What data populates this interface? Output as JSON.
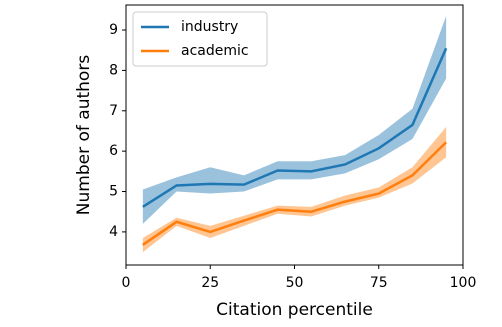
{
  "chart_data": {
    "type": "line",
    "xlabel": "Citation percentile",
    "ylabel": "Number of authors",
    "x": [
      5,
      15,
      25,
      35,
      45,
      55,
      65,
      75,
      85,
      95
    ],
    "series": [
      {
        "name": "industry",
        "color": "#1f77b4",
        "values": [
          4.62,
          5.15,
          5.19,
          5.17,
          5.52,
          5.5,
          5.67,
          6.07,
          6.65,
          8.55
        ],
        "lower": [
          4.2,
          5.0,
          4.95,
          5.0,
          5.3,
          5.3,
          5.45,
          5.8,
          6.3,
          7.8
        ],
        "upper": [
          5.05,
          5.35,
          5.6,
          5.4,
          5.75,
          5.75,
          5.9,
          6.4,
          7.05,
          9.35
        ]
      },
      {
        "name": "academic",
        "color": "#ff7f0e",
        "values": [
          3.68,
          4.25,
          4.0,
          4.28,
          4.55,
          4.5,
          4.75,
          4.95,
          5.4,
          6.22
        ],
        "lower": [
          3.5,
          4.15,
          3.85,
          4.15,
          4.45,
          4.38,
          4.65,
          4.85,
          5.2,
          5.85
        ],
        "upper": [
          3.85,
          4.35,
          4.15,
          4.4,
          4.65,
          4.62,
          4.9,
          5.1,
          5.6,
          6.6
        ]
      }
    ],
    "xlim": [
      0,
      100
    ],
    "xticks": [
      0,
      25,
      50,
      75,
      100
    ],
    "ylim": [
      3.18,
      9.62
    ],
    "yticks": [
      4,
      5,
      6,
      7,
      8,
      9
    ],
    "grid": false,
    "legend": "upper left"
  }
}
